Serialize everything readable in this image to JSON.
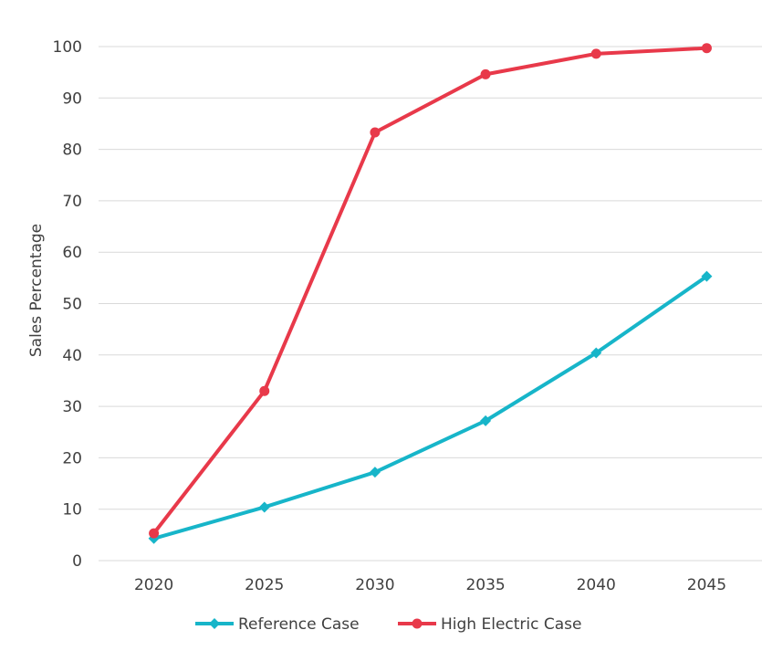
{
  "chart_data": {
    "type": "line",
    "title": "",
    "xlabel": "",
    "ylabel": "Sales Percentage",
    "x": [
      "2020",
      "2025",
      "2030",
      "2035",
      "2040",
      "2045"
    ],
    "ylim": [
      0,
      100
    ],
    "yticks": [
      0,
      10,
      20,
      30,
      40,
      50,
      60,
      70,
      80,
      90,
      100
    ],
    "grid": true,
    "legend_position": "bottom",
    "series": [
      {
        "name": "Reference Case",
        "values": [
          4.3,
          10.4,
          17.2,
          27.2,
          40.4,
          55.3
        ],
        "color": "#17b5c9",
        "marker": "diamond"
      },
      {
        "name": "High Electric Case",
        "values": [
          5.3,
          33.0,
          83.3,
          94.6,
          98.6,
          99.7
        ],
        "color": "#e8394a",
        "marker": "circle"
      }
    ]
  }
}
